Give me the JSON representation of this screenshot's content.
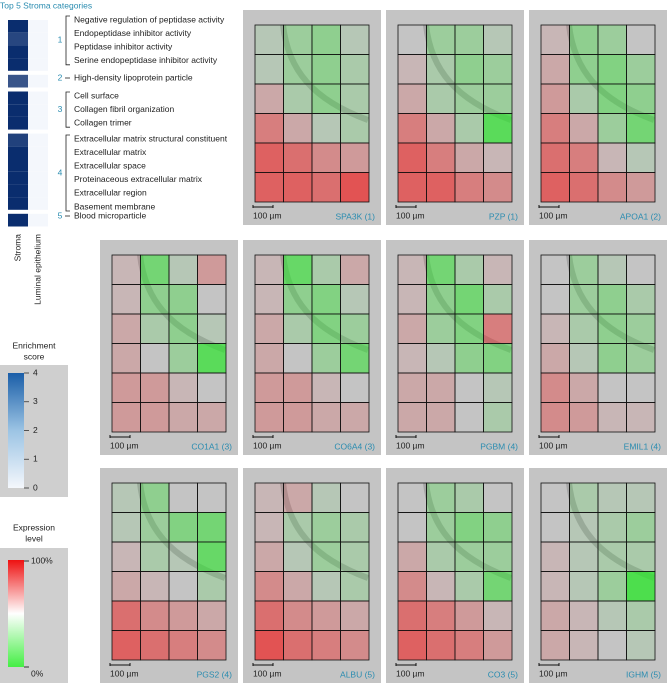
{
  "title": "Top 5 Stroma categories",
  "heatmap": {
    "columns": [
      "Stroma",
      "Luminal epithelium"
    ],
    "rows": [
      [
        4,
        0
      ],
      [
        3.5,
        0
      ],
      [
        4,
        0
      ],
      [
        4,
        0
      ],
      [
        3.2,
        0
      ],
      [
        4,
        0
      ],
      [
        4,
        0
      ],
      [
        4,
        0
      ],
      [
        3.6,
        0
      ],
      [
        4,
        0
      ],
      [
        4,
        0
      ],
      [
        4,
        0
      ],
      [
        4,
        0
      ],
      [
        4,
        0
      ],
      [
        4,
        0
      ]
    ]
  },
  "groups": [
    {
      "number": "1",
      "terms": [
        "Negative regulation of peptidase activity",
        "Endopeptidase inhibitor activity",
        "Peptidase inhibitor activity",
        "Serine endopeptidase inhibitor activity"
      ]
    },
    {
      "number": "2",
      "terms": [
        "High-density lipoprotein particle"
      ]
    },
    {
      "number": "3",
      "terms": [
        "Cell surface",
        "Collagen fibril organization",
        "Collagen trimer"
      ]
    },
    {
      "number": "4",
      "terms": [
        "Extracellular matrix structural constituent",
        "Extracellular matrix",
        "Extracellular space",
        "Proteinaceous extracellular matrix",
        "Extracellular region",
        "Basement membrane"
      ]
    },
    {
      "number": "5",
      "terms": [
        "Blood microparticle"
      ]
    }
  ],
  "enrichment_legend": {
    "title": [
      "Enrichment",
      "score"
    ],
    "ticks": [
      0,
      1,
      2,
      3,
      4
    ]
  },
  "expression_legend": {
    "title": [
      "Expression",
      "level"
    ],
    "top": "100%",
    "bottom": "0%"
  },
  "scale_bar": "100 µm",
  "panels": [
    {
      "label": "SPA3K (1)",
      "values": [
        [
          45,
          35,
          30,
          45
        ],
        [
          45,
          35,
          30,
          40
        ],
        [
          60,
          40,
          30,
          40
        ],
        [
          75,
          60,
          45,
          40
        ],
        [
          85,
          80,
          70,
          65
        ],
        [
          85,
          85,
          80,
          90
        ]
      ]
    },
    {
      "label": "PZP (1)",
      "values": [
        [
          50,
          35,
          35,
          45
        ],
        [
          55,
          40,
          30,
          35
        ],
        [
          60,
          40,
          35,
          35
        ],
        [
          75,
          60,
          40,
          10
        ],
        [
          85,
          75,
          60,
          55
        ],
        [
          85,
          85,
          75,
          70
        ]
      ]
    },
    {
      "label": "APOA1 (2)",
      "values": [
        [
          55,
          30,
          35,
          50
        ],
        [
          60,
          30,
          25,
          35
        ],
        [
          65,
          40,
          25,
          30
        ],
        [
          75,
          60,
          35,
          20
        ],
        [
          80,
          75,
          55,
          45
        ],
        [
          85,
          80,
          70,
          65
        ]
      ]
    },
    {
      "label": "CO1A1 (3)",
      "values": [
        [
          55,
          20,
          45,
          65
        ],
        [
          55,
          30,
          30,
          50
        ],
        [
          60,
          40,
          30,
          45
        ],
        [
          60,
          50,
          35,
          10
        ],
        [
          65,
          65,
          55,
          50
        ],
        [
          65,
          65,
          60,
          60
        ]
      ]
    },
    {
      "label": "CO6A4 (3)",
      "values": [
        [
          55,
          15,
          40,
          60
        ],
        [
          55,
          30,
          25,
          45
        ],
        [
          60,
          40,
          25,
          35
        ],
        [
          60,
          50,
          35,
          20
        ],
        [
          65,
          65,
          55,
          50
        ],
        [
          65,
          65,
          60,
          60
        ]
      ]
    },
    {
      "label": "PGBM (4)",
      "values": [
        [
          55,
          20,
          40,
          55
        ],
        [
          55,
          30,
          20,
          40
        ],
        [
          60,
          35,
          25,
          75
        ],
        [
          55,
          45,
          30,
          25
        ],
        [
          60,
          60,
          50,
          45
        ],
        [
          60,
          60,
          50,
          40
        ]
      ]
    },
    {
      "label": "EMIL1 (4)",
      "values": [
        [
          50,
          35,
          45,
          50
        ],
        [
          50,
          35,
          30,
          40
        ],
        [
          55,
          40,
          30,
          35
        ],
        [
          60,
          45,
          30,
          35
        ],
        [
          70,
          60,
          50,
          50
        ],
        [
          70,
          65,
          55,
          55
        ]
      ]
    },
    {
      "label": "PGS2 (4)",
      "values": [
        [
          45,
          30,
          50,
          50
        ],
        [
          45,
          35,
          25,
          20
        ],
        [
          55,
          40,
          45,
          15
        ],
        [
          60,
          55,
          50,
          40
        ],
        [
          80,
          70,
          65,
          60
        ],
        [
          85,
          80,
          75,
          70
        ]
      ]
    },
    {
      "label": "ALBU (5)",
      "values": [
        [
          55,
          60,
          45,
          50
        ],
        [
          55,
          40,
          35,
          40
        ],
        [
          60,
          45,
          35,
          40
        ],
        [
          70,
          60,
          45,
          40
        ],
        [
          80,
          70,
          65,
          60
        ],
        [
          90,
          80,
          75,
          70
        ]
      ]
    },
    {
      "label": "CO3 (5)",
      "values": [
        [
          50,
          35,
          40,
          50
        ],
        [
          50,
          35,
          25,
          30
        ],
        [
          60,
          40,
          35,
          35
        ],
        [
          70,
          55,
          40,
          20
        ],
        [
          80,
          75,
          65,
          55
        ],
        [
          85,
          80,
          75,
          65
        ]
      ]
    },
    {
      "label": "IGHM (5)",
      "values": [
        [
          50,
          40,
          45,
          45
        ],
        [
          50,
          45,
          40,
          35
        ],
        [
          55,
          45,
          40,
          40
        ],
        [
          55,
          45,
          35,
          5
        ],
        [
          60,
          55,
          45,
          40
        ],
        [
          60,
          55,
          50,
          45
        ]
      ]
    }
  ]
}
